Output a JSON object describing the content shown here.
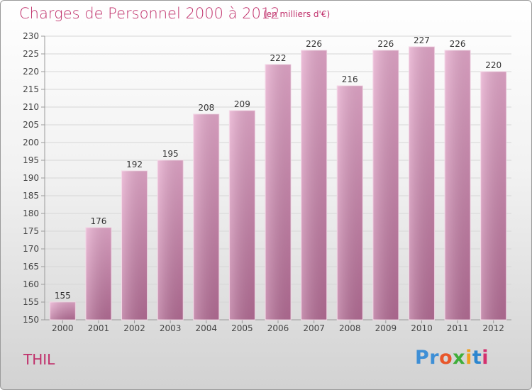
{
  "chart_data": {
    "type": "bar",
    "title": "Charges de Personnel 2000 à 2012",
    "subtitle": "(en milliers d'€)",
    "categories": [
      "2000",
      "2001",
      "2002",
      "2003",
      "2004",
      "2005",
      "2006",
      "2007",
      "2008",
      "2009",
      "2010",
      "2011",
      "2012"
    ],
    "values": [
      155,
      176,
      192,
      195,
      208,
      209,
      222,
      226,
      216,
      226,
      227,
      226,
      220
    ],
    "ylim": [
      150,
      230
    ],
    "ytick_step": 5,
    "grid": true,
    "bar_color": "#d98fba"
  },
  "location": "THIL",
  "logo": {
    "parts": [
      "Pr",
      "o",
      "x",
      "i",
      "t",
      "i"
    ]
  }
}
